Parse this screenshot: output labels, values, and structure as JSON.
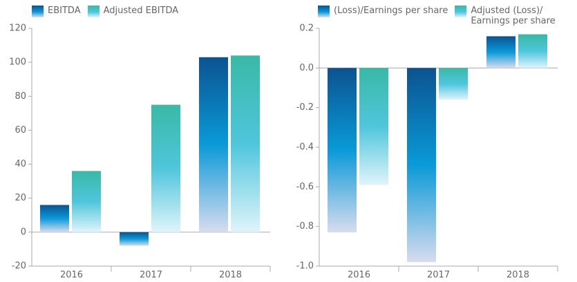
{
  "chart_data": [
    {
      "type": "bar",
      "categories": [
        "2016",
        "2017",
        "2018"
      ],
      "series": [
        {
          "name": "EBITDA",
          "color": "#0b5390",
          "values": [
            16,
            -8,
            103
          ]
        },
        {
          "name": "Adjusted EBITDA",
          "color": "#39b9a6",
          "values": [
            36,
            75,
            104
          ]
        }
      ],
      "ylim": [
        -20,
        120
      ],
      "yticks": [
        -20,
        0,
        20,
        40,
        60,
        80,
        100,
        120
      ],
      "grid": false
    },
    {
      "type": "bar",
      "categories": [
        "2016",
        "2017",
        "2018"
      ],
      "series": [
        {
          "name": "(Loss)/Earnings per share",
          "color": "#0b5390",
          "values": [
            -0.83,
            -0.98,
            0.16
          ]
        },
        {
          "name": "Adjusted (Loss)/ Earnings per share",
          "color": "#39b9a6",
          "values": [
            -0.59,
            -0.16,
            0.17
          ]
        }
      ],
      "ylim": [
        -1.0,
        0.2
      ],
      "yticks": [
        {
          "value": -1.0,
          "label": "-1.0"
        },
        -0.8,
        -0.6,
        -0.4,
        -0.2,
        {
          "value": 0,
          "label": "0.0"
        },
        0.2
      ],
      "grid": false
    }
  ]
}
